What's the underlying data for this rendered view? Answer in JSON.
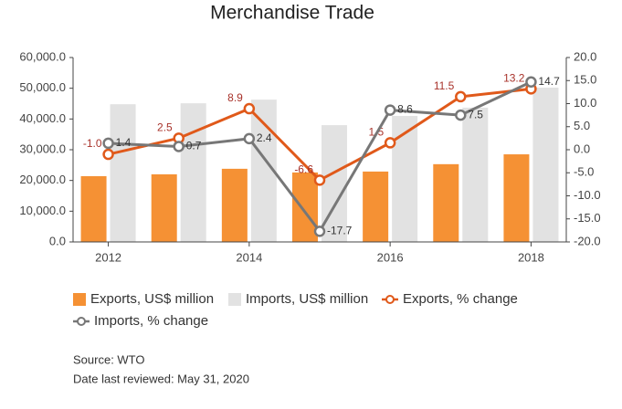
{
  "chart_data": {
    "type": "bar-line",
    "title": "Merchandise Trade",
    "categories": [
      "2012",
      null,
      "2014",
      null,
      "2016",
      null,
      "2018"
    ],
    "ylim": [
      0,
      60000
    ],
    "yticks": [
      {
        "value": 0,
        "label": "0.0"
      },
      {
        "value": 10000,
        "label": "10,000.0"
      },
      {
        "value": 20000,
        "label": "20,000.0"
      },
      {
        "value": 30000,
        "label": "30,000.0"
      },
      {
        "value": 40000,
        "label": "40,000.0"
      },
      {
        "value": 50000,
        "label": "50,000.0"
      },
      {
        "value": 60000,
        "label": "60,000.0"
      }
    ],
    "y2lim": [
      -20,
      20
    ],
    "y2ticks": [
      {
        "value": -20,
        "label": "-20.0"
      },
      {
        "value": -15,
        "label": "-15.0"
      },
      {
        "value": -10,
        "label": "-10.0"
      },
      {
        "value": -5,
        "label": "-5.0"
      },
      {
        "value": 0,
        "label": "0.0"
      },
      {
        "value": 5,
        "label": "5.0"
      },
      {
        "value": 10,
        "label": "10.0"
      },
      {
        "value": 15,
        "label": "15.0"
      },
      {
        "value": 20,
        "label": "20.0"
      }
    ],
    "series": [
      {
        "name": "Exports, US$ million",
        "type": "bar",
        "color": "#f59134",
        "values": [
          21400,
          22000,
          23800,
          22600,
          22900,
          25300,
          28500
        ]
      },
      {
        "name": "Imports, US$ million",
        "type": "bar",
        "color": "#e2e2e2",
        "values": [
          44800,
          45100,
          46300,
          38000,
          41000,
          43700,
          50200
        ]
      },
      {
        "name": "Exports, % change",
        "type": "line",
        "axis": "y2",
        "color": "#e0591a",
        "label_color": "#a8322a",
        "values": [
          -1.0,
          2.5,
          8.9,
          -6.6,
          1.5,
          11.5,
          13.2
        ],
        "value_labels": [
          "-1.0",
          "2.5",
          "8.9",
          "-6.6",
          "1.5",
          "11.5",
          "13.2"
        ]
      },
      {
        "name": "Imports, % change",
        "type": "line",
        "axis": "y2",
        "color": "#777777",
        "label_color": "#333333",
        "values": [
          1.4,
          0.7,
          2.4,
          -17.7,
          8.6,
          7.5,
          14.7
        ],
        "value_labels": [
          "1.4",
          "0.7",
          "2.4",
          "-17.7",
          "8.6",
          "7.5",
          "14.7"
        ]
      }
    ],
    "source": "Source: WTO",
    "note": "Date last reviewed: May 31, 2020"
  }
}
